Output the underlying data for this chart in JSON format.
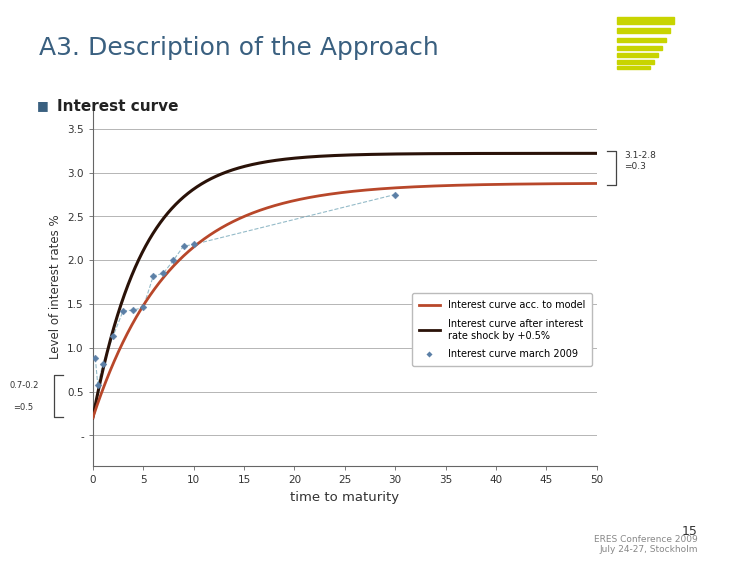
{
  "title": "A3. Description of the Approach",
  "bullet": "Interest curve",
  "xlabel": "time to maturity",
  "ylabel": "Level of interest rates %",
  "xlim": [
    0,
    50
  ],
  "ylim": [
    -0.35,
    3.75
  ],
  "yticks": [
    0.0,
    0.5,
    1.0,
    1.5,
    2.0,
    2.5,
    3.0,
    3.5
  ],
  "ytick_labels": [
    "-",
    "0.5",
    "1.0",
    "1.5",
    "2.0",
    "2.5",
    "3.0",
    "3.5"
  ],
  "xticks": [
    0,
    5,
    10,
    15,
    20,
    25,
    30,
    35,
    40,
    45,
    50
  ],
  "model_color": "#B8472A",
  "shock_color": "#2A1208",
  "scatter_color": "#5B7FA6",
  "scatter_line_color": "#7aaabb",
  "model_asymptote": 2.88,
  "shock_asymptote": 3.22,
  "model_rate": 0.13,
  "shock_rate": 0.2,
  "model_label": "Interest curve acc. to model",
  "shock_label": "Interest curve after interest\nrate shock by +0.5%",
  "scatter_label": "Interest curve march 2009",
  "scatter_x": [
    0.25,
    0.5,
    1.0,
    2.0,
    3.0,
    4.0,
    5.0,
    6.0,
    7.0,
    8.0,
    9.0,
    10.0,
    30.0
  ],
  "scatter_y": [
    0.88,
    0.57,
    0.82,
    1.13,
    1.42,
    1.43,
    1.46,
    1.82,
    1.85,
    2.0,
    2.16,
    2.18,
    2.75
  ],
  "annot_right_text": "3.1-2.8\n=0.3",
  "annot_left_text": "0.7-0.2\n=0.5",
  "title_color": "#3A6080",
  "title_fontsize": 18,
  "bg_color": "#FFFFFF",
  "slide_bg": "#FFFFFF",
  "grid_color": "#999999",
  "page_num": "15",
  "footer": "ERES Conference 2009\nJuly 24-27, Stockholm",
  "footer_color": "#888888",
  "bottom_bar_color": "#d4d9c8"
}
